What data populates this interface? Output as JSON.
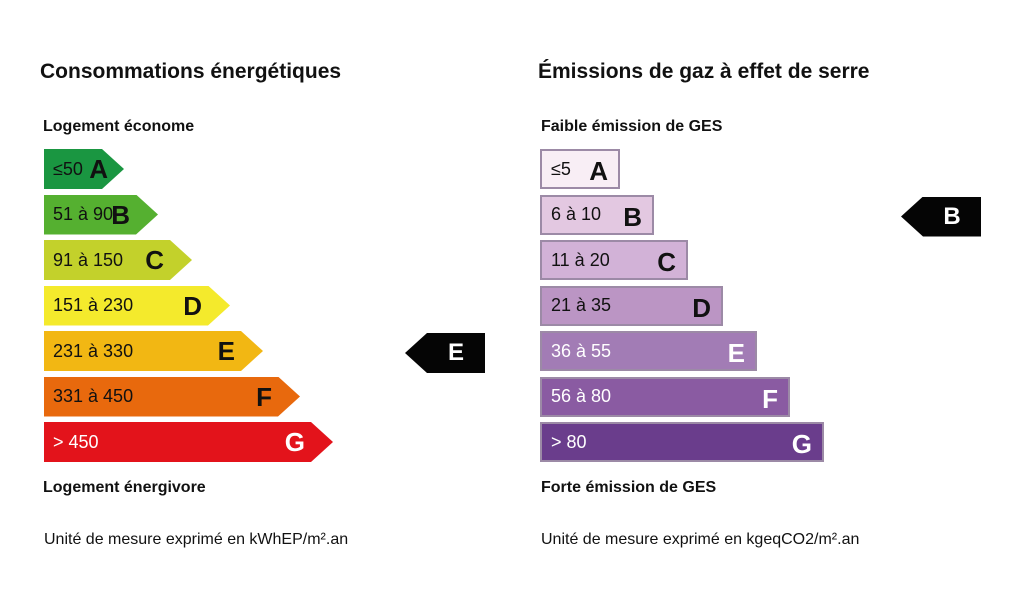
{
  "energy": {
    "title": "Consommations énergétiques",
    "top_label": "Logement économe",
    "bottom_label": "Logement énergivore",
    "unit": "Unité de mesure exprimé en kWhEP/m².an",
    "classes": [
      {
        "range": "≤50",
        "letter": "A",
        "color": "#1a9641"
      },
      {
        "range": "51 à 90",
        "letter": "B",
        "color": "#55b030"
      },
      {
        "range": "91 à 150",
        "letter": "C",
        "color": "#c3d12b"
      },
      {
        "range": "151 à 230",
        "letter": "D",
        "color": "#f4ea2c"
      },
      {
        "range": "231 à 330",
        "letter": "E",
        "color": "#f2b713"
      },
      {
        "range": "331 à 450",
        "letter": "F",
        "color": "#e8690d"
      },
      {
        "range": "> 450",
        "letter": "G",
        "color": "#e3131b"
      }
    ],
    "current": "E"
  },
  "ges": {
    "title": "Émissions de gaz à effet de serre",
    "top_label": "Faible émission de GES",
    "bottom_label": "Forte émission de GES",
    "unit": "Unité de mesure exprimé en kgeqCO2/m².an",
    "classes": [
      {
        "range": "≤5",
        "letter": "A",
        "color": "#f8eef5"
      },
      {
        "range": "6 à 10",
        "letter": "B",
        "color": "#e3c8e1"
      },
      {
        "range": "11 à 20",
        "letter": "C",
        "color": "#d2b2d7"
      },
      {
        "range": "21 à 35",
        "letter": "D",
        "color": "#bb95c4"
      },
      {
        "range": "36 à 55",
        "letter": "E",
        "color": "#a27cb5"
      },
      {
        "range": "56 à 80",
        "letter": "F",
        "color": "#8a5ba2"
      },
      {
        "range": "> 80",
        "letter": "G",
        "color": "#6a3d8c"
      }
    ],
    "current": "B"
  }
}
